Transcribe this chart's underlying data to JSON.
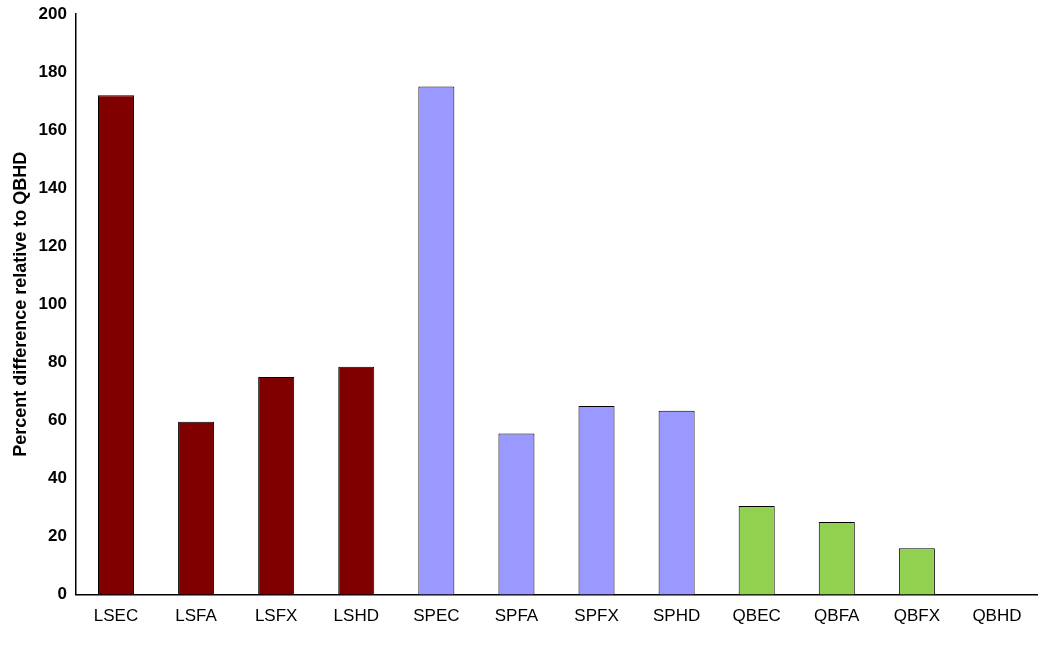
{
  "chart_data": {
    "type": "bar",
    "ylabel": "Percent difference relative to QBHD",
    "categories": [
      "LSEC",
      "LSFA",
      "LSFX",
      "LSHD",
      "SPEC",
      "SPFA",
      "SPFX",
      "SPHD",
      "QBEC",
      "QBFA",
      "QBFX",
      "QBHD"
    ],
    "values": [
      172,
      59.5,
      75,
      78.5,
      175,
      55.5,
      65,
      63.3,
      30.5,
      25,
      16,
      0
    ],
    "colors": [
      "#800000",
      "#800000",
      "#800000",
      "#800000",
      "#9999ff",
      "#9999ff",
      "#9999ff",
      "#9999ff",
      "#92d050",
      "#92d050",
      "#92d050",
      "#92d050"
    ],
    "ylim": [
      0,
      200
    ],
    "yticks": [
      0,
      20,
      40,
      60,
      80,
      100,
      120,
      140,
      160,
      180,
      200
    ],
    "grid": false,
    "legend": false
  }
}
